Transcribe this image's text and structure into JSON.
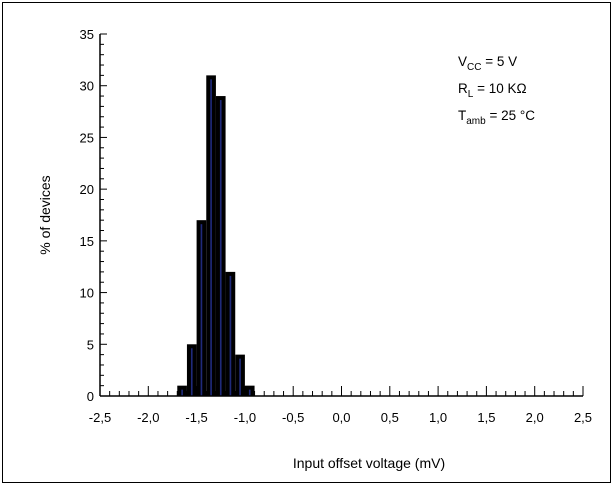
{
  "chart_data": {
    "type": "bar",
    "subtype": "histogram",
    "xlabel": "Input  offset voltage (mV)",
    "ylabel": "% of devices",
    "xlim": [
      -2.5,
      2.5
    ],
    "ylim": [
      0,
      35
    ],
    "x_ticks": [
      "-2,5",
      "-2,0",
      "-1,5",
      "-1,0",
      "-0,5",
      "0,0",
      "0,5",
      "1,0",
      "1,5",
      "2,0",
      "2,5"
    ],
    "y_ticks": [
      "0",
      "5",
      "10",
      "15",
      "20",
      "25",
      "30",
      "35"
    ],
    "bin_width": 0.1,
    "bins": [
      {
        "x": -1.65,
        "value": 1
      },
      {
        "x": -1.55,
        "value": 5
      },
      {
        "x": -1.45,
        "value": 17
      },
      {
        "x": -1.35,
        "value": 31
      },
      {
        "x": -1.25,
        "value": 29
      },
      {
        "x": -1.15,
        "value": 12
      },
      {
        "x": -1.05,
        "value": 4
      },
      {
        "x": -0.95,
        "value": 1
      }
    ],
    "bar_fill": "#1f2a7a",
    "bar_edge": "#000000",
    "grid": false,
    "annotations": [
      {
        "main": "V",
        "sub": "CC",
        "rest": " = 5 V"
      },
      {
        "main": "R",
        "sub": "L",
        "rest": " = 10 KΩ"
      },
      {
        "main": "T",
        "sub": "amb",
        "rest": " = 25 °C"
      }
    ]
  }
}
